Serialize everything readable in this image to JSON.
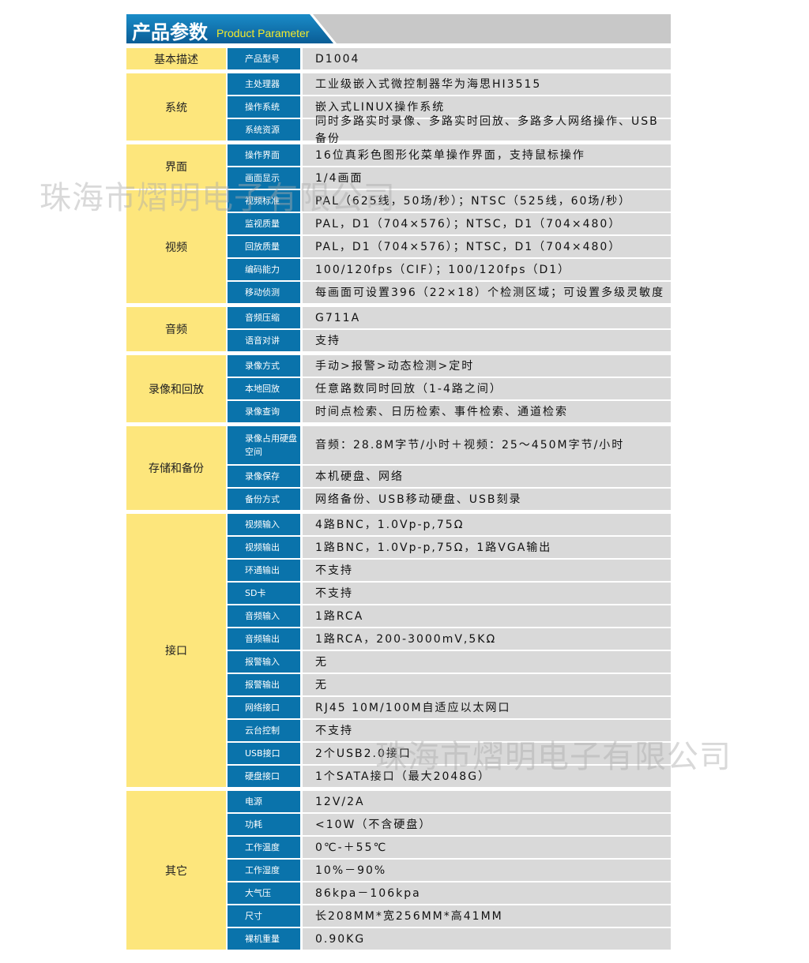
{
  "header": {
    "title_cn": "产品参数",
    "title_en": "Product Parameter"
  },
  "watermark": "珠海市熠明电子有限公司",
  "groups": [
    {
      "category": "基本描述",
      "rows": [
        {
          "label": "产品型号",
          "value": "D1004"
        }
      ]
    },
    {
      "category": "系统",
      "rows": [
        {
          "label": "主处理器",
          "value": "工业级嵌入式微控制器华为海思HI3515"
        },
        {
          "label": "操作系统",
          "value": "嵌入式LINUX操作系统"
        },
        {
          "label": "系统资源",
          "value": "同时多路实时录像、多路实时回放、多路多人网络操作、USB备份"
        }
      ]
    },
    {
      "category": "界面",
      "rows": [
        {
          "label": "操作界面",
          "value": "16位真彩色图形化菜单操作界面，支持鼠标操作"
        },
        {
          "label": "画面显示",
          "value": "1/4画面"
        }
      ]
    },
    {
      "category": "视频",
      "rows": [
        {
          "label": "视频标准",
          "value": "PAL（625线，50场/秒）；NTSC（525线，60场/秒）"
        },
        {
          "label": "监视质量",
          "value": "PAL，D1（704×576）；NTSC，D1（704×480）"
        },
        {
          "label": "回放质量",
          "value": "PAL，D1（704×576）；NTSC，D1（704×480）"
        },
        {
          "label": "编码能力",
          "value": "100/120fps（CIF）；100/120fps（D1）"
        },
        {
          "label": "移动侦测",
          "value": "每画面可设置396（22×18）个检测区域；可设置多级灵敏度"
        }
      ]
    },
    {
      "category": "音频",
      "rows": [
        {
          "label": "音频压缩",
          "value": "G711A"
        },
        {
          "label": "语音对讲",
          "value": "支持"
        }
      ]
    },
    {
      "category": "录像和回放",
      "rows": [
        {
          "label": "录像方式",
          "value": "手动>报警>动态检测>定时"
        },
        {
          "label": "本地回放",
          "value": "任意路数同时回放（1-4路之间）"
        },
        {
          "label": "录像查询",
          "value": "时间点检索、日历检索、事件检索、通道检索"
        }
      ]
    },
    {
      "category": "存储和备份",
      "rows": [
        {
          "label": "录像占用硬盘空间",
          "value": "音频：28.8M字节/小时＋视频：25～450M字节/小时"
        },
        {
          "label": "录像保存",
          "value": "本机硬盘、网络"
        },
        {
          "label": "备份方式",
          "value": "网络备份、USB移动硬盘、USB刻录"
        }
      ]
    },
    {
      "category": "接口",
      "rows": [
        {
          "label": "视频输入",
          "value": "4路BNC，1.0Vp-p,75Ω"
        },
        {
          "label": "视频输出",
          "value": "1路BNC，1.0Vp-p,75Ω，1路VGA输出"
        },
        {
          "label": "环通输出",
          "value": "不支持"
        },
        {
          "label": "SD卡",
          "value": "不支持"
        },
        {
          "label": "音频输入",
          "value": "1路RCA"
        },
        {
          "label": "音频输出",
          "value": "1路RCA，200-3000mV,5KΩ"
        },
        {
          "label": "报警输入",
          "value": "无"
        },
        {
          "label": "报警输出",
          "value": "无"
        },
        {
          "label": "网络接口",
          "value": "RJ45 10M/100M自适应以太网口"
        },
        {
          "label": "云台控制",
          "value": "不支持"
        },
        {
          "label": "USB接口",
          "value": "2个USB2.0接口"
        },
        {
          "label": "硬盘接口",
          "value": "1个SATA接口（最大2048G）"
        }
      ]
    },
    {
      "category": "其它",
      "rows": [
        {
          "label": "电源",
          "value": "12V/2A"
        },
        {
          "label": "功耗",
          "value": "<10W（不含硬盘）"
        },
        {
          "label": "工作温度",
          "value": "0℃-＋55℃"
        },
        {
          "label": "工作湿度",
          "value": "10%－90%"
        },
        {
          "label": "大气压",
          "value": "86kpa－106kpa"
        },
        {
          "label": "尺寸",
          "value": "长208MM*宽256MM*高41MM"
        },
        {
          "label": "裸机重量",
          "value": "0.90KG"
        }
      ]
    }
  ],
  "colors": {
    "category_bg": "#fde67c",
    "label_bg": "#0a73ab",
    "value_bg": "#d9d9d9",
    "header_blue": "#0a6fa8",
    "header_en": "#f4ea2a"
  }
}
